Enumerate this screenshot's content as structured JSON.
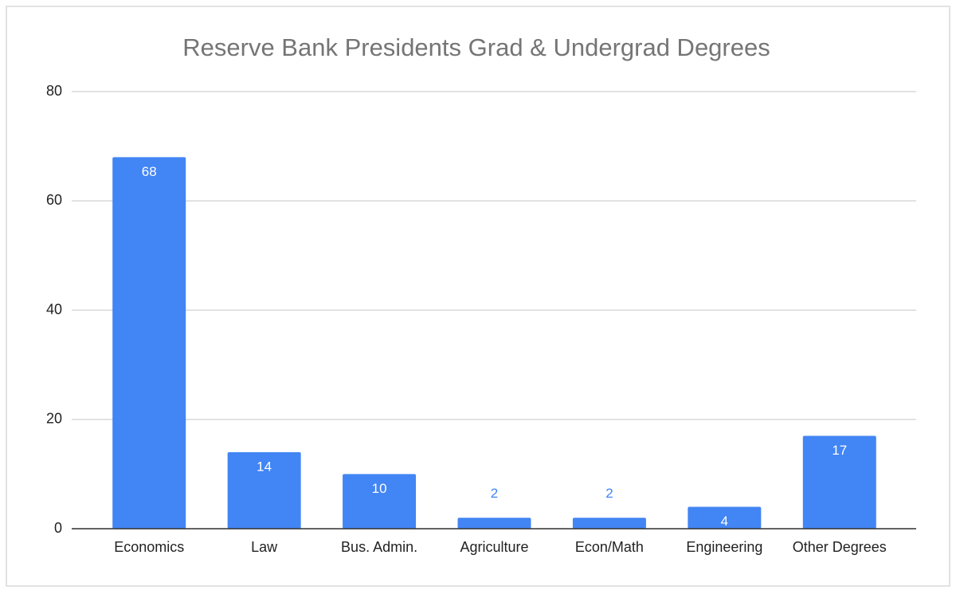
{
  "chart_data": {
    "type": "bar",
    "title": "Reserve Bank Presidents Grad & Undergrad Degrees",
    "categories": [
      "Economics",
      "Law",
      "Bus. Admin.",
      "Agriculture",
      "Econ/Math",
      "Engineering",
      "Other Degrees"
    ],
    "values": [
      68,
      14,
      10,
      2,
      2,
      4,
      17
    ],
    "color": "#4285f4",
    "ylim": [
      0,
      80
    ],
    "yticks": [
      0,
      20,
      40,
      60,
      80
    ],
    "grid": true
  }
}
